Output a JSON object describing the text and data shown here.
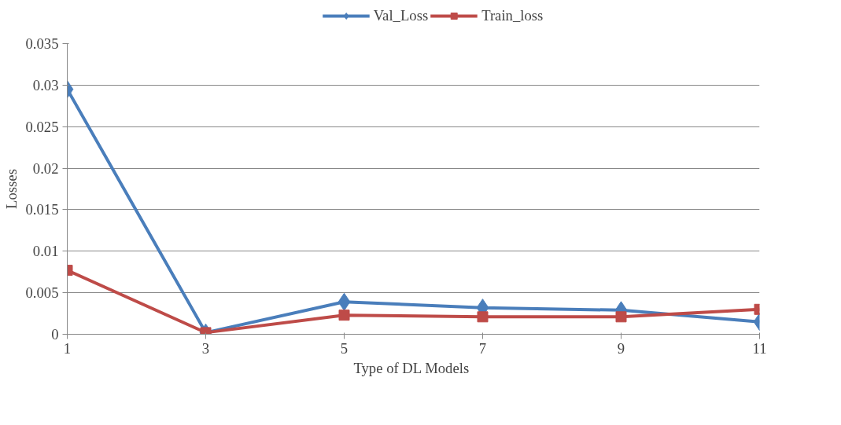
{
  "chart_data": {
    "type": "line",
    "xlabel": "Type of  DL Models",
    "ylabel": "Losses",
    "x": [
      1,
      3,
      5,
      7,
      9,
      11
    ],
    "series": [
      {
        "name": "Val_Loss",
        "color": "#4a7ebb",
        "marker": "diamond",
        "values": [
          0.0295,
          0.0002,
          0.0039,
          0.0032,
          0.0029,
          0.0015
        ]
      },
      {
        "name": "Train_loss",
        "color": "#be4b48",
        "marker": "square",
        "values": [
          0.0077,
          0.0002,
          0.0023,
          0.0021,
          0.0021,
          0.003
        ]
      }
    ],
    "xlim": [
      1,
      11
    ],
    "xticks": [
      1,
      3,
      5,
      7,
      9,
      11
    ],
    "ylim": [
      0,
      0.035
    ],
    "yticks": [
      0,
      0.005,
      0.01,
      0.015,
      0.02,
      0.025,
      0.03,
      0.035
    ],
    "grid": "y",
    "legend": "top",
    "line_style": "solid"
  }
}
